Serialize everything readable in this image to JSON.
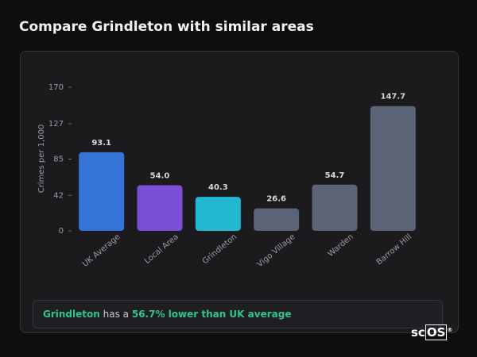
{
  "header": {
    "title": "Compare Grindleton with similar areas"
  },
  "chart_data": {
    "type": "bar",
    "y_label": "Crimes per 1,000",
    "categories": [
      "UK Average",
      "Local Area",
      "Grindleton",
      "Vigo Village",
      "Warden",
      "Barrow Hill"
    ],
    "values": [
      93.1,
      54.0,
      40.3,
      26.6,
      54.7,
      147.7
    ],
    "value_labels": [
      "93.1",
      "54.0",
      "40.3",
      "26.6",
      "54.7",
      "147.7"
    ],
    "colors": [
      "#3573d9",
      "#7a4fd6",
      "#20b9d0",
      "#5b6477",
      "#5b6477",
      "#5b6477"
    ],
    "ylim": [
      0,
      170
    ],
    "yticks": [
      0,
      42,
      85,
      127,
      170
    ]
  },
  "summary": {
    "area": "Grindleton",
    "text": "has a",
    "highlight": "56.7% lower than UK average"
  },
  "logo": {
    "prefix": "sc",
    "boxed": "OS",
    "mark": "®"
  }
}
